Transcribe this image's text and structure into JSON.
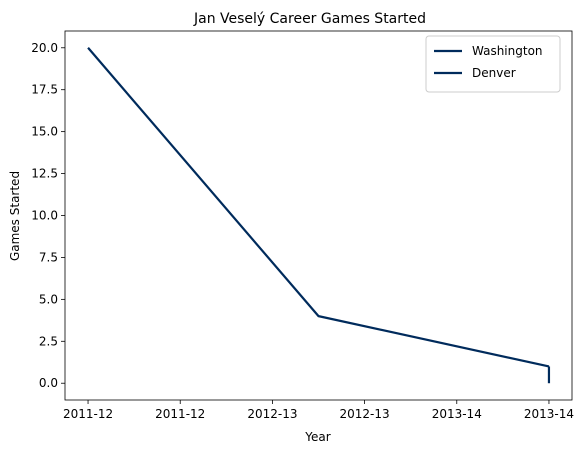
{
  "chart_data": {
    "type": "line",
    "title": "Jan Veselý Career Games Started",
    "xlabel": "Year",
    "ylabel": "Games Started",
    "x_tick_labels": [
      "2011-12",
      "2011-12",
      "2012-13",
      "2012-13",
      "2013-14",
      "2013-14"
    ],
    "xlim": [
      -0.25,
      5.25
    ],
    "y_ticks": [
      0.0,
      2.5,
      5.0,
      7.5,
      10.0,
      12.5,
      15.0,
      17.5,
      20.0
    ],
    "y_tick_labels": [
      "0.0",
      "2.5",
      "5.0",
      "7.5",
      "10.0",
      "12.5",
      "15.0",
      "17.5",
      "20.0"
    ],
    "ylim": [
      -1.0,
      21.0
    ],
    "grid": false,
    "legend_position": "top-right",
    "series": [
      {
        "name": "Washington",
        "color": "#002b5c",
        "points": [
          {
            "x": "2011-12",
            "y": 20
          },
          {
            "x": "2012-13",
            "y": 4
          },
          {
            "x": "2013-14",
            "y": 1
          }
        ]
      },
      {
        "name": "Denver",
        "color": "#002b5c",
        "points": [
          {
            "x": "2013-14",
            "y": 1
          },
          {
            "x": "2013-14",
            "y": 0
          }
        ]
      }
    ]
  }
}
